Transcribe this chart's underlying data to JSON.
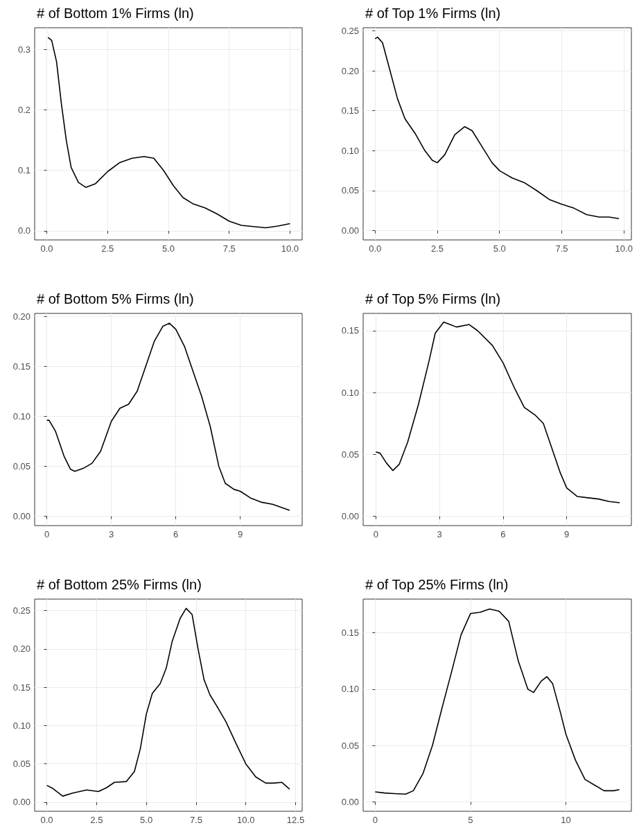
{
  "chart_data": [
    {
      "type": "line",
      "title": "# of Bottom 1% Firms (ln)",
      "color": "#000000",
      "grid": true,
      "xlim": [
        -0.5,
        10.5
      ],
      "ylim": [
        -0.015,
        0.336
      ],
      "xticks": [
        {
          "value": 0,
          "label": "0.0"
        },
        {
          "value": 2.5,
          "label": "2.5"
        },
        {
          "value": 5,
          "label": "5.0"
        },
        {
          "value": 7.5,
          "label": "7.5"
        },
        {
          "value": 10,
          "label": "10.0"
        }
      ],
      "yticks": [
        {
          "value": 0,
          "label": "0.0"
        },
        {
          "value": 0.1,
          "label": "0.1"
        },
        {
          "value": 0.2,
          "label": "0.2"
        },
        {
          "value": 0.3,
          "label": "0.3"
        }
      ],
      "x": [
        0.05,
        0.2,
        0.4,
        0.6,
        0.8,
        1.0,
        1.3,
        1.6,
        2.0,
        2.5,
        3.0,
        3.5,
        4.0,
        4.4,
        4.8,
        5.2,
        5.6,
        6.0,
        6.5,
        7.0,
        7.5,
        8.0,
        8.5,
        9.0,
        9.5,
        10.0
      ],
      "values": [
        0.32,
        0.315,
        0.28,
        0.21,
        0.15,
        0.105,
        0.08,
        0.072,
        0.078,
        0.098,
        0.113,
        0.12,
        0.123,
        0.12,
        0.1,
        0.075,
        0.055,
        0.045,
        0.038,
        0.028,
        0.016,
        0.009,
        0.007,
        0.005,
        0.008,
        0.012
      ]
    },
    {
      "type": "line",
      "title": "# of Top 1% Firms (ln)",
      "color": "#000000",
      "grid": true,
      "xlim": [
        -0.48,
        10.3
      ],
      "ylim": [
        -0.0116,
        0.2538
      ],
      "xticks": [
        {
          "value": 0,
          "label": "0.0"
        },
        {
          "value": 2.5,
          "label": "2.5"
        },
        {
          "value": 5,
          "label": "5.0"
        },
        {
          "value": 7.5,
          "label": "7.5"
        },
        {
          "value": 10,
          "label": "10.0"
        }
      ],
      "yticks": [
        {
          "value": 0,
          "label": "0.00"
        },
        {
          "value": 0.05,
          "label": "0.05"
        },
        {
          "value": 0.1,
          "label": "0.10"
        },
        {
          "value": 0.15,
          "label": "0.15"
        },
        {
          "value": 0.2,
          "label": "0.20"
        },
        {
          "value": 0.25,
          "label": "0.25"
        }
      ],
      "x": [
        0.0,
        0.1,
        0.3,
        0.6,
        0.9,
        1.2,
        1.6,
        2.0,
        2.3,
        2.5,
        2.8,
        3.2,
        3.6,
        3.9,
        4.3,
        4.7,
        5.0,
        5.5,
        6.0,
        6.5,
        7.0,
        7.5,
        8.0,
        8.5,
        9.0,
        9.4,
        9.8
      ],
      "values": [
        0.24,
        0.242,
        0.235,
        0.2,
        0.165,
        0.14,
        0.122,
        0.1,
        0.088,
        0.085,
        0.095,
        0.12,
        0.13,
        0.125,
        0.105,
        0.085,
        0.075,
        0.066,
        0.06,
        0.05,
        0.039,
        0.033,
        0.028,
        0.02,
        0.017,
        0.017,
        0.015
      ]
    },
    {
      "type": "line",
      "title": "# of Bottom 5% Firms (ln)",
      "color": "#000000",
      "grid": true,
      "xlim": [
        -0.57,
        11.88
      ],
      "ylim": [
        -0.0093,
        0.2028
      ],
      "xticks": [
        0,
        3,
        6,
        9
      ],
      "yticks": [
        {
          "value": 0,
          "label": "0.00"
        },
        {
          "value": 0.05,
          "label": "0.05"
        },
        {
          "value": 0.1,
          "label": "0.10"
        },
        {
          "value": 0.15,
          "label": "0.15"
        },
        {
          "value": 0.2,
          "label": "0.20"
        }
      ],
      "x": [
        0.0,
        0.1,
        0.4,
        0.8,
        1.1,
        1.3,
        1.7,
        2.1,
        2.5,
        3.0,
        3.4,
        3.8,
        4.2,
        4.6,
        5.0,
        5.4,
        5.7,
        6.0,
        6.4,
        6.8,
        7.2,
        7.6,
        8.0,
        8.3,
        8.7,
        9.0,
        9.5,
        10.0,
        10.5,
        11.3
      ],
      "values": [
        0.096,
        0.096,
        0.085,
        0.06,
        0.047,
        0.045,
        0.048,
        0.053,
        0.065,
        0.095,
        0.108,
        0.112,
        0.125,
        0.15,
        0.175,
        0.19,
        0.193,
        0.187,
        0.17,
        0.145,
        0.12,
        0.09,
        0.05,
        0.033,
        0.027,
        0.025,
        0.018,
        0.014,
        0.012,
        0.006
      ]
    },
    {
      "type": "line",
      "title": "# of Top 5% Firms (ln)",
      "color": "#000000",
      "grid": true,
      "xlim": [
        -0.6,
        12.05
      ],
      "ylim": [
        -0.0075,
        0.164
      ],
      "xticks": [
        0,
        3,
        6,
        9
      ],
      "yticks": [
        {
          "value": 0,
          "label": "0.00"
        },
        {
          "value": 0.05,
          "label": "0.05"
        },
        {
          "value": 0.1,
          "label": "0.10"
        },
        {
          "value": 0.15,
          "label": "0.15"
        }
      ],
      "x": [
        0.0,
        0.2,
        0.5,
        0.8,
        1.1,
        1.5,
        2.0,
        2.5,
        2.8,
        3.2,
        3.5,
        3.8,
        4.4,
        4.8,
        5.5,
        6.0,
        6.5,
        7.0,
        7.5,
        7.9,
        8.3,
        8.7,
        9.0,
        9.5,
        10.0,
        10.5,
        11.0,
        11.5
      ],
      "values": [
        0.052,
        0.051,
        0.043,
        0.037,
        0.042,
        0.06,
        0.09,
        0.125,
        0.148,
        0.157,
        0.155,
        0.153,
        0.155,
        0.15,
        0.138,
        0.124,
        0.105,
        0.088,
        0.082,
        0.075,
        0.055,
        0.035,
        0.023,
        0.016,
        0.015,
        0.014,
        0.012,
        0.011
      ]
    },
    {
      "type": "line",
      "title": "# of Bottom 25% Firms (ln)",
      "color": "#000000",
      "grid": true,
      "xlim": [
        -0.61,
        12.83
      ],
      "ylim": [
        -0.0118,
        0.2651
      ],
      "xticks": [
        {
          "value": 0,
          "label": "0.0"
        },
        {
          "value": 2.5,
          "label": "2.5"
        },
        {
          "value": 5,
          "label": "5.0"
        },
        {
          "value": 7.5,
          "label": "7.5"
        },
        {
          "value": 10,
          "label": "10.0"
        },
        {
          "value": 12.5,
          "label": "12.5"
        }
      ],
      "yticks": [
        {
          "value": 0,
          "label": "0.00"
        },
        {
          "value": 0.05,
          "label": "0.05"
        },
        {
          "value": 0.1,
          "label": "0.10"
        },
        {
          "value": 0.15,
          "label": "0.15"
        },
        {
          "value": 0.2,
          "label": "0.20"
        },
        {
          "value": 0.25,
          "label": "0.25"
        }
      ],
      "x": [
        0.0,
        0.3,
        0.8,
        1.3,
        2.0,
        2.6,
        3.0,
        3.4,
        4.0,
        4.4,
        4.7,
        5.0,
        5.3,
        5.7,
        6.0,
        6.3,
        6.7,
        7.0,
        7.3,
        7.6,
        7.9,
        8.2,
        8.6,
        9.0,
        9.5,
        10.0,
        10.5,
        11.0,
        11.4,
        11.8,
        12.2
      ],
      "values": [
        0.022,
        0.018,
        0.008,
        0.012,
        0.016,
        0.014,
        0.019,
        0.026,
        0.027,
        0.04,
        0.07,
        0.115,
        0.142,
        0.155,
        0.175,
        0.21,
        0.24,
        0.253,
        0.245,
        0.2,
        0.16,
        0.14,
        0.123,
        0.105,
        0.077,
        0.05,
        0.033,
        0.025,
        0.025,
        0.026,
        0.017
      ]
    },
    {
      "type": "line",
      "title": "# of Top 25% Firms (ln)",
      "color": "#000000",
      "grid": true,
      "xlim": [
        -0.63,
        13.43
      ],
      "ylim": [
        -0.0082,
        0.1797
      ],
      "xticks": [
        0,
        5,
        10
      ],
      "yticks": [
        {
          "value": 0,
          "label": "0.00"
        },
        {
          "value": 0.05,
          "label": "0.05"
        },
        {
          "value": 0.1,
          "label": "0.10"
        },
        {
          "value": 0.15,
          "label": "0.15"
        }
      ],
      "x": [
        0.0,
        0.5,
        1.0,
        1.6,
        2.0,
        2.5,
        3.0,
        3.5,
        4.0,
        4.5,
        5.0,
        5.5,
        6.0,
        6.5,
        7.0,
        7.5,
        8.0,
        8.3,
        8.7,
        9.0,
        9.3,
        9.7,
        10.0,
        10.5,
        11.0,
        11.5,
        12.0,
        12.5,
        12.8
      ],
      "values": [
        0.009,
        0.008,
        0.0075,
        0.007,
        0.01,
        0.025,
        0.05,
        0.083,
        0.115,
        0.148,
        0.167,
        0.168,
        0.171,
        0.169,
        0.16,
        0.125,
        0.1,
        0.097,
        0.107,
        0.111,
        0.105,
        0.08,
        0.06,
        0.037,
        0.02,
        0.015,
        0.01,
        0.01,
        0.011
      ]
    }
  ]
}
